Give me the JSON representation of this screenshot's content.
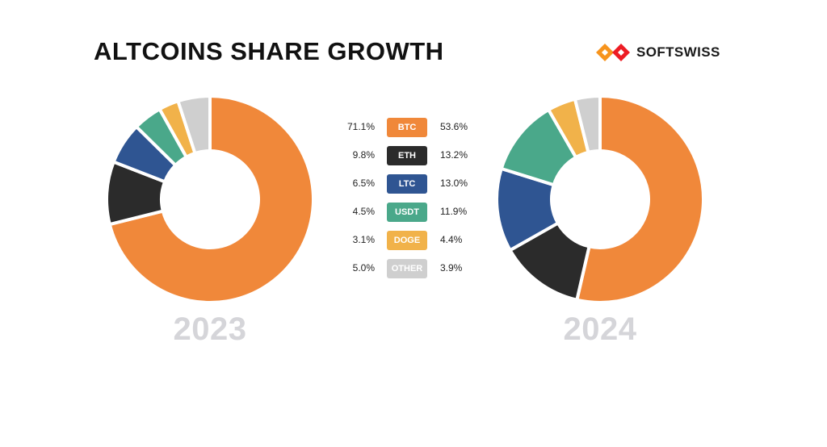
{
  "title": "ALTCOINS SHARE GROWTH",
  "brand": {
    "name": "SOFTSWISS",
    "colors": [
      "#f7941d",
      "#ed1c24"
    ]
  },
  "chart_data": [
    {
      "type": "pie",
      "donut": true,
      "year_label": "2023",
      "categories": [
        "BTC",
        "ETH",
        "LTC",
        "USDT",
        "DOGE",
        "OTHER"
      ],
      "values": [
        71.1,
        9.8,
        6.5,
        4.5,
        3.1,
        5.0
      ],
      "value_labels": [
        "71.1%",
        "9.8%",
        "6.5%",
        "4.5%",
        "3.1%",
        "5.0%"
      ],
      "colors": [
        "#f0883a",
        "#2b2b2b",
        "#2f5592",
        "#4aa88a",
        "#f1b24a",
        "#cfcfcf"
      ]
    },
    {
      "type": "pie",
      "donut": true,
      "year_label": "2024",
      "categories": [
        "BTC",
        "ETH",
        "LTC",
        "USDT",
        "DOGE",
        "OTHER"
      ],
      "values": [
        53.6,
        13.2,
        13.0,
        11.9,
        4.4,
        3.9
      ],
      "value_labels": [
        "53.6%",
        "13.2%",
        "13.0%",
        "11.9%",
        "4.4%",
        "3.9%"
      ],
      "colors": [
        "#f0883a",
        "#2b2b2b",
        "#2f5592",
        "#4aa88a",
        "#f1b24a",
        "#cfcfcf"
      ]
    }
  ],
  "legend": [
    {
      "label": "BTC",
      "color": "#f0883a",
      "left": "71.1%",
      "right": "53.6%"
    },
    {
      "label": "ETH",
      "color": "#2b2b2b",
      "left": "9.8%",
      "right": "13.2%"
    },
    {
      "label": "LTC",
      "color": "#2f5592",
      "left": "6.5%",
      "right": "13.0%"
    },
    {
      "label": "USDT",
      "color": "#4aa88a",
      "left": "4.5%",
      "right": "11.9%"
    },
    {
      "label": "DOGE",
      "color": "#f1b24a",
      "left": "3.1%",
      "right": "4.4%"
    },
    {
      "label": "OTHER",
      "color": "#cfcfcf",
      "left": "5.0%",
      "right": "3.9%"
    }
  ]
}
